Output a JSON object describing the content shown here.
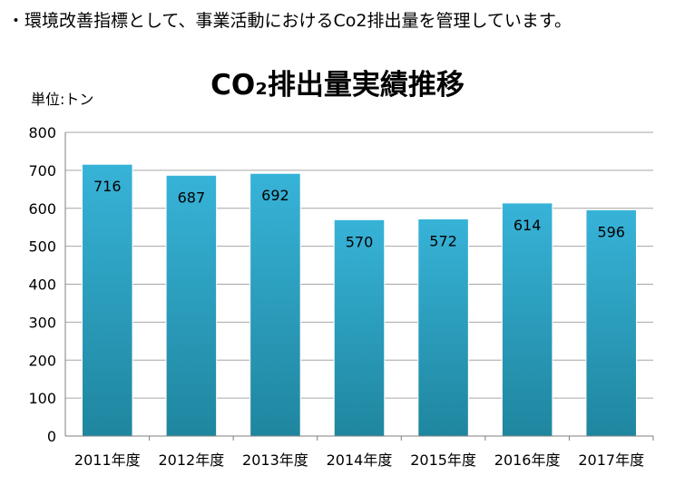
{
  "intro_text": "・環境改善指標として、事業活動におけるCo2排出量を管理しています。",
  "chart_data": {
    "type": "bar",
    "title": "CO₂排出量実績推移",
    "unit_label": "単位:トン",
    "categories": [
      "2011年度",
      "2012年度",
      "2013年度",
      "2014年度",
      "2015年度",
      "2016年度",
      "2017年度"
    ],
    "values": [
      716,
      687,
      692,
      570,
      572,
      614,
      596
    ],
    "ylim": [
      0,
      800
    ],
    "yticks": [
      0,
      100,
      200,
      300,
      400,
      500,
      600,
      700,
      800
    ],
    "grid": true,
    "legend": "none",
    "colors": {
      "bar_top": "#37b3d8",
      "bar_bottom": "#1f869f",
      "grid": "#a6a6a6",
      "axis": "#7f7f7f"
    }
  }
}
